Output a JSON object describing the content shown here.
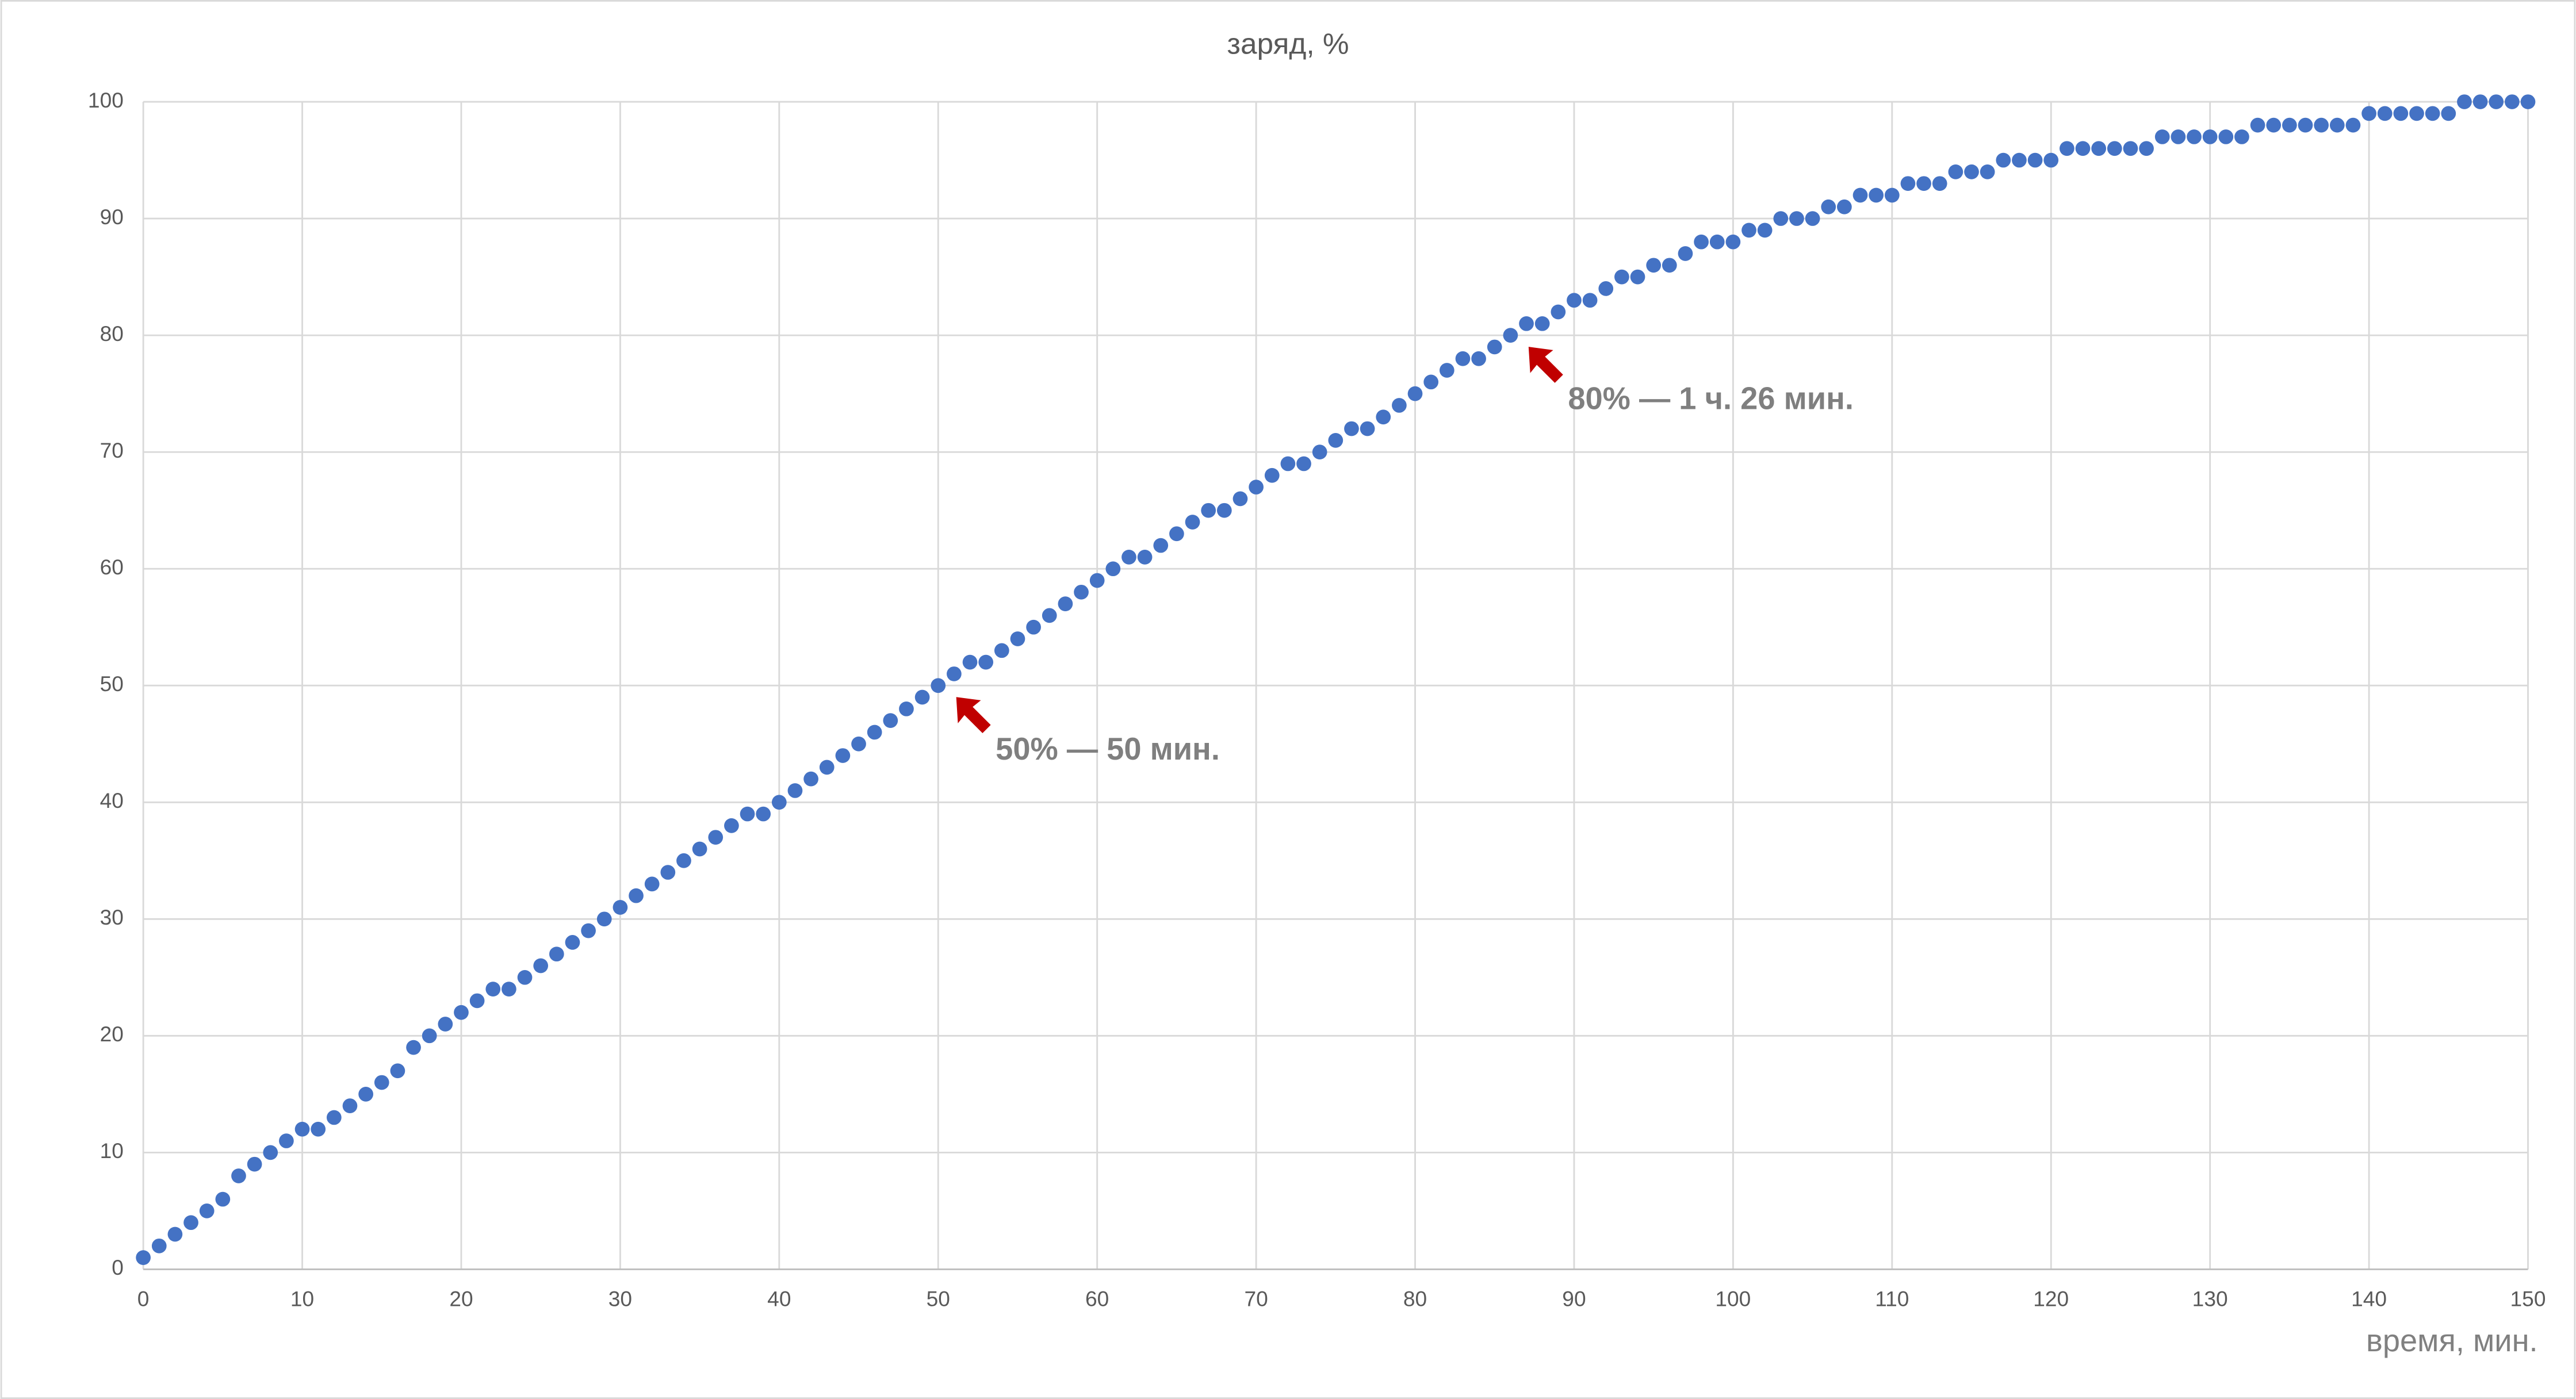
{
  "chart_data": {
    "type": "scatter",
    "title": "заряд, %",
    "x_label": "время, мин.",
    "series": [
      {
        "name": "заряд",
        "color": "#4472c4",
        "x": [
          0,
          1,
          2,
          3,
          4,
          5,
          6,
          7,
          8,
          9,
          10,
          11,
          12,
          13,
          14,
          15,
          16,
          17,
          18,
          19,
          20,
          21,
          22,
          23,
          24,
          25,
          26,
          27,
          28,
          29,
          30,
          31,
          32,
          33,
          34,
          35,
          36,
          37,
          38,
          39,
          40,
          41,
          42,
          43,
          44,
          45,
          46,
          47,
          48,
          49,
          50,
          51,
          52,
          53,
          54,
          55,
          56,
          57,
          58,
          59,
          60,
          61,
          62,
          63,
          64,
          65,
          66,
          67,
          68,
          69,
          70,
          71,
          72,
          73,
          74,
          75,
          76,
          77,
          78,
          79,
          80,
          81,
          82,
          83,
          84,
          85,
          86,
          87,
          88,
          89,
          90,
          91,
          92,
          93,
          94,
          95,
          96,
          97,
          98,
          99,
          100,
          101,
          102,
          103,
          104,
          105,
          106,
          107,
          108,
          109,
          110,
          111,
          112,
          113,
          114,
          115,
          116,
          117,
          118,
          119,
          120,
          121,
          122,
          123,
          124,
          125,
          126,
          127,
          128,
          129,
          130,
          131,
          132,
          133,
          134,
          135,
          136,
          137,
          138,
          139,
          140,
          141,
          142,
          143,
          144,
          145,
          146,
          147,
          148,
          149,
          150
        ],
        "values": [
          1,
          2,
          3,
          4,
          5,
          6,
          8,
          9,
          10,
          11,
          12,
          12,
          13,
          14,
          15,
          16,
          17,
          19,
          20,
          21,
          22,
          23,
          24,
          24,
          25,
          26,
          27,
          28,
          29,
          30,
          31,
          32,
          33,
          34,
          35,
          36,
          37,
          38,
          39,
          39,
          40,
          41,
          42,
          43,
          44,
          45,
          46,
          47,
          48,
          49,
          50,
          51,
          52,
          52,
          53,
          54,
          55,
          56,
          57,
          58,
          59,
          60,
          61,
          61,
          62,
          63,
          64,
          65,
          65,
          66,
          67,
          68,
          69,
          69,
          70,
          71,
          72,
          72,
          73,
          74,
          75,
          76,
          77,
          78,
          78,
          79,
          80,
          81,
          81,
          82,
          83,
          83,
          84,
          85,
          85,
          86,
          86,
          87,
          88,
          88,
          88,
          89,
          89,
          90,
          90,
          90,
          91,
          91,
          92,
          92,
          92,
          93,
          93,
          93,
          94,
          94,
          94,
          95,
          95,
          95,
          95,
          96,
          96,
          96,
          96,
          96,
          96,
          97,
          97,
          97,
          97,
          97,
          97,
          98,
          98,
          98,
          98,
          98,
          98,
          98,
          99,
          99,
          99,
          99,
          99,
          99,
          100,
          100,
          100,
          100,
          100
        ]
      }
    ],
    "xlim": [
      0,
      150
    ],
    "xticks": [
      0,
      10,
      20,
      30,
      40,
      50,
      60,
      70,
      80,
      90,
      100,
      110,
      120,
      130,
      140,
      150
    ],
    "ylim": [
      0,
      100
    ],
    "yticks": [
      0,
      10,
      20,
      30,
      40,
      50,
      60,
      70,
      80,
      90,
      100
    ],
    "grid": true,
    "annotations": [
      {
        "text": "50% — 50 мин.",
        "x": 50,
        "y": 50,
        "color": "#c00000"
      },
      {
        "text": "80% — 1 ч. 26 мин.",
        "x": 86,
        "y": 80,
        "color": "#c00000"
      }
    ]
  }
}
